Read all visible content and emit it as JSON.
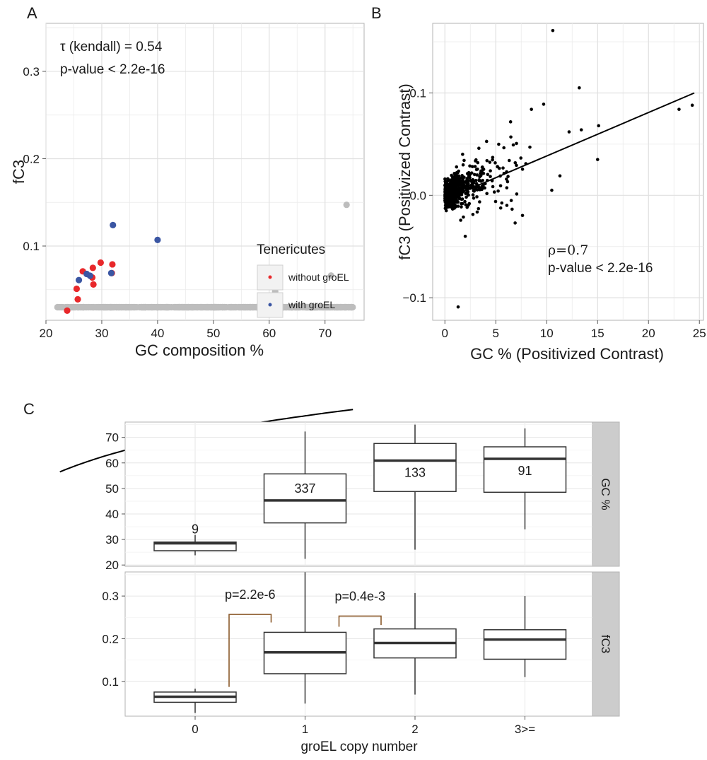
{
  "colors": {
    "gray_points": "#bdbdbd",
    "red": "#e8282b",
    "blue": "#3b56a3",
    "grid": "#ebebeb",
    "border": "#b3b3b3",
    "strip_bg": "#cccccc",
    "bracket": "#8b5a2b",
    "line": "#000000"
  },
  "chart_data": [
    {
      "panel": "A",
      "type": "scatter",
      "xlabel": "GC composition %",
      "ylabel": "fC3",
      "xlim": [
        20,
        77
      ],
      "ylim": [
        0.015,
        0.355
      ],
      "xticks": [
        "20",
        "30",
        "40",
        "50",
        "60",
        "70"
      ],
      "yticks": [
        "0.1",
        "0.2",
        "0.3"
      ],
      "annotations": [
        "τ (kendall) = 0.54",
        "p-value < 2.2e-16"
      ],
      "legend": {
        "title": "Tenericutes",
        "entries": [
          "without groEL",
          "with groEL"
        ],
        "position": "bottom-right"
      },
      "series": [
        {
          "name": "without groEL",
          "color_key": "red",
          "points": [
            [
              23.8,
              0.026
            ],
            [
              25.7,
              0.039
            ],
            [
              25.5,
              0.051
            ],
            [
              26.6,
              0.071
            ],
            [
              28.3,
              0.064
            ],
            [
              28.5,
              0.056
            ],
            [
              28.4,
              0.075
            ],
            [
              29.8,
              0.081
            ],
            [
              31.8,
              0.069
            ],
            [
              31.9,
              0.079
            ]
          ]
        },
        {
          "name": "with groEL",
          "color_key": "blue",
          "points": [
            [
              25.9,
              0.061
            ],
            [
              27.3,
              0.068
            ],
            [
              27.9,
              0.066
            ],
            [
              31.7,
              0.069
            ],
            [
              32.0,
              0.124
            ],
            [
              40.0,
              0.107
            ]
          ]
        }
      ],
      "fit": {
        "type": "log",
        "a": -0.343,
        "b": 0.1364,
        "x_range": [
          22.5,
          75
        ]
      }
    },
    {
      "panel": "B",
      "type": "scatter",
      "xlabel": "GC % (Positivized Contrast)",
      "ylabel": "fC3 (Positivized Contrast)",
      "xlim": [
        -1.2,
        25.4
      ],
      "ylim": [
        -0.122,
        0.168
      ],
      "xticks": [
        "0",
        "5",
        "10",
        "15",
        "20",
        "25"
      ],
      "yticks": [
        "−0.1",
        "0.0",
        "0.1"
      ],
      "annotations": [
        "ρ=0.7",
        "p-value < 2.2e-16"
      ],
      "highlight_points": [
        [
          10.6,
          0.161
        ],
        [
          13.2,
          0.105
        ],
        [
          24.3,
          0.088
        ],
        [
          23.0,
          0.084
        ],
        [
          9.7,
          0.089
        ],
        [
          8.5,
          0.084
        ],
        [
          15.1,
          0.068
        ],
        [
          13.4,
          0.064
        ],
        [
          12.2,
          0.062
        ],
        [
          15.0,
          0.035
        ],
        [
          1.3,
          -0.109
        ],
        [
          10.5,
          0.005
        ],
        [
          11.3,
          0.019
        ],
        [
          6.9,
          -0.027
        ],
        [
          2.0,
          -0.04
        ]
      ],
      "fit": {
        "type": "linear",
        "x_range": [
          0,
          24.5
        ],
        "y_range": [
          -0.004,
          0.1
        ]
      }
    },
    {
      "panel": "C",
      "type": "box",
      "xlabel": "groEL copy number",
      "categories": [
        "0",
        "1",
        "2",
        "3>="
      ],
      "facets": [
        {
          "strip": "GC %",
          "ylim": [
            19.5,
            76
          ],
          "yticks": [
            "20",
            "30",
            "40",
            "50",
            "60",
            "70"
          ],
          "boxes": [
            {
              "low": 23.8,
              "q1": 25.6,
              "median": 28.5,
              "q3": 29.0,
              "high": 31.8,
              "n": "9"
            },
            {
              "low": 22.4,
              "q1": 36.5,
              "median": 45.3,
              "q3": 55.7,
              "high": 72.3,
              "n": "337"
            },
            {
              "low": 26.0,
              "q1": 48.8,
              "median": 60.9,
              "q3": 67.6,
              "high": 75.0,
              "n": "133"
            },
            {
              "low": 34.0,
              "q1": 48.5,
              "median": 61.6,
              "q3": 66.3,
              "high": 73.5,
              "n": "91"
            }
          ],
          "brackets": []
        },
        {
          "strip": "fC3",
          "ylim": [
            0.0185,
            0.3565
          ],
          "yticks": [
            "0.1",
            "0.2",
            "0.3"
          ],
          "boxes": [
            {
              "low": 0.026,
              "q1": 0.051,
              "median": 0.064,
              "q3": 0.075,
              "high": 0.083
            },
            {
              "low": 0.048,
              "q1": 0.118,
              "median": 0.168,
              "q3": 0.215,
              "high": 0.356
            },
            {
              "low": 0.069,
              "q1": 0.155,
              "median": 0.19,
              "q3": 0.223,
              "high": 0.307
            },
            {
              "low": 0.11,
              "q1": 0.152,
              "median": 0.198,
              "q3": 0.221,
              "high": 0.3
            }
          ],
          "brackets": [
            {
              "from": "0",
              "to": "1",
              "label": "p=2.2e-6",
              "left_y": 0.087,
              "right_y": 0.238,
              "top_y": 0.257
            },
            {
              "from": "1",
              "to": "2",
              "label": "p=0.4e-3",
              "left_y": 0.228,
              "right_y": 0.232,
              "top_y": 0.253
            }
          ]
        }
      ]
    }
  ]
}
